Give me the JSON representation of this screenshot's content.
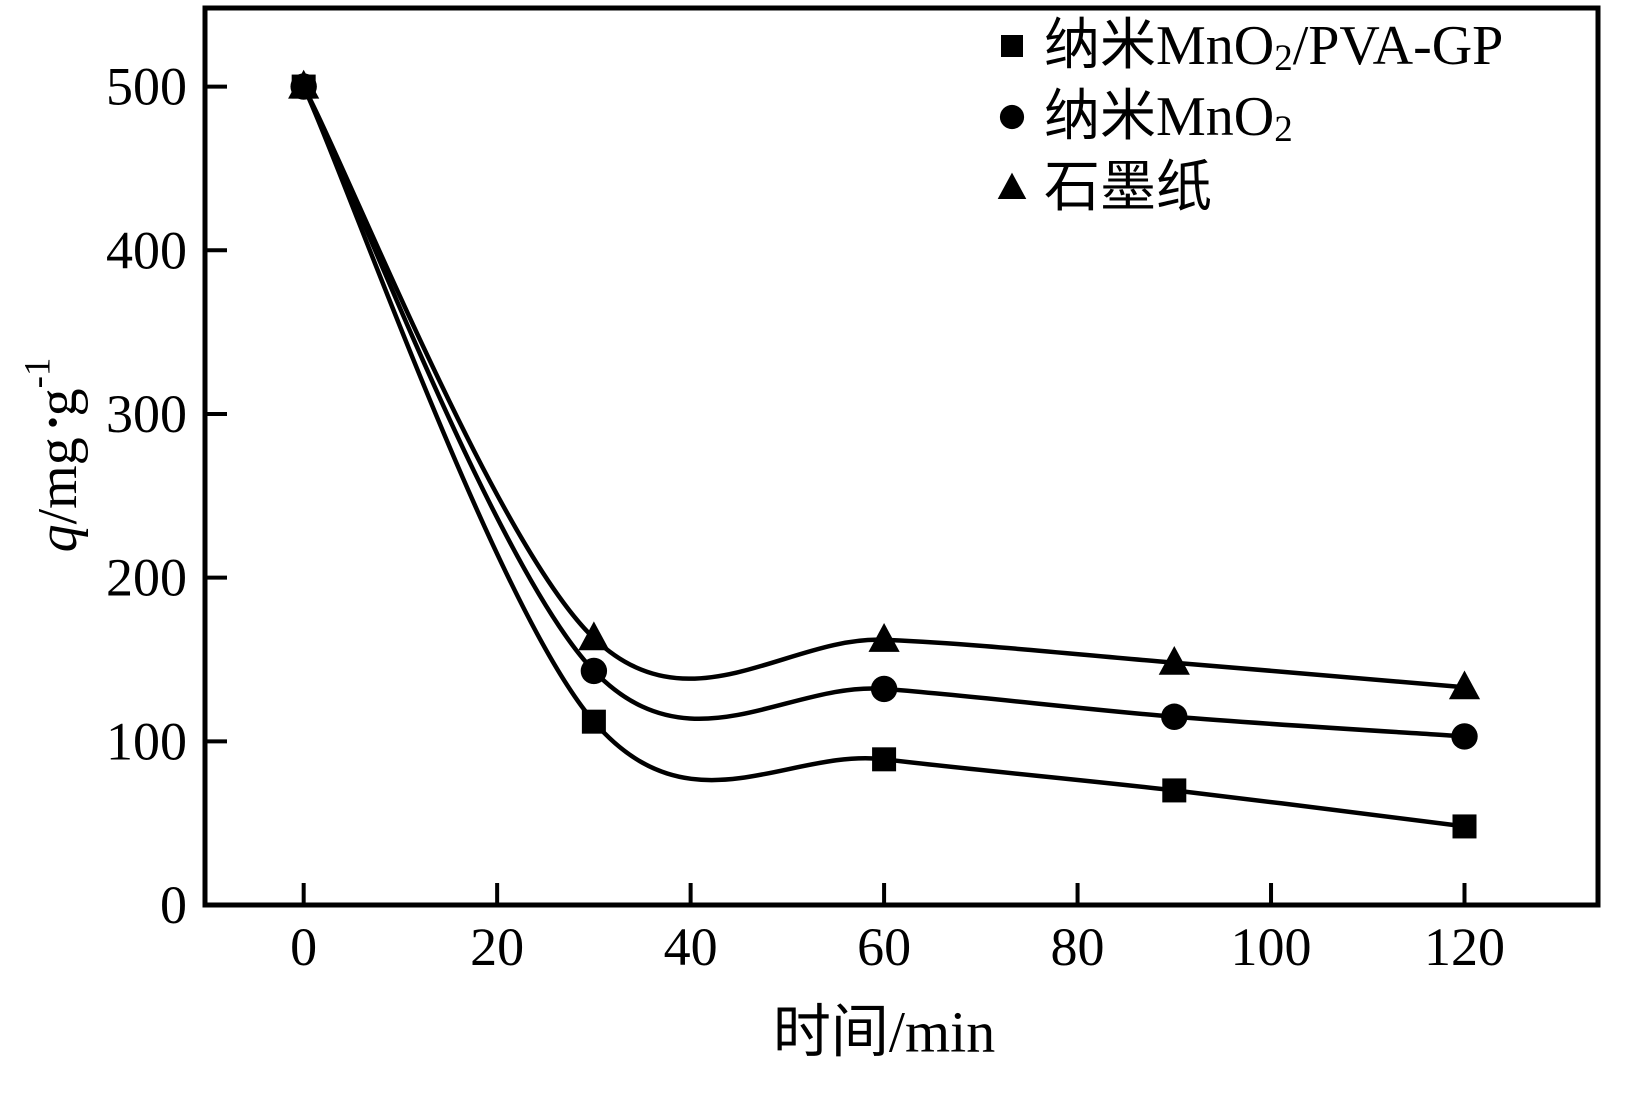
{
  "chart_data": {
    "type": "line",
    "x": [
      0,
      30,
      60,
      90,
      120
    ],
    "series": [
      {
        "name": "纳米MnO2/PVA-GP",
        "marker": "square",
        "values": [
          500,
          112,
          89,
          70,
          48
        ],
        "legend_segments": [
          {
            "t": "纳米MnO"
          },
          {
            "t": "2",
            "style": "sub"
          },
          {
            "t": "/PVA-GP"
          }
        ]
      },
      {
        "name": "纳米MnO2",
        "marker": "circle",
        "values": [
          500,
          143,
          132,
          115,
          103
        ],
        "legend_segments": [
          {
            "t": "纳米MnO"
          },
          {
            "t": "2",
            "style": "sub"
          }
        ]
      },
      {
        "name": "石墨纸",
        "marker": "triangle",
        "values": [
          500,
          163,
          162,
          148,
          133
        ],
        "legend_segments": [
          {
            "t": "石墨纸"
          }
        ]
      }
    ],
    "xlabel": "时间/min",
    "ylabel": "q/mg•g-1",
    "ylabel_segments": [
      {
        "t": "q",
        "style": "italic"
      },
      {
        "t": "/mg"
      },
      {
        "t": " •",
        "style": "bullet"
      },
      {
        "t": "g"
      },
      {
        "t": "-1",
        "style": "sup"
      }
    ],
    "xticks": [
      0,
      20,
      40,
      60,
      80,
      100,
      120
    ],
    "yticks": [
      0,
      100,
      200,
      300,
      400,
      500
    ],
    "xlim": [
      -10.2,
      133.8
    ],
    "ylim": [
      0,
      548
    ],
    "grid": false,
    "legend_position": "top-right",
    "colors": {
      "line": "#000000",
      "background": "#ffffff"
    },
    "smoothing": "catmull-rom"
  }
}
